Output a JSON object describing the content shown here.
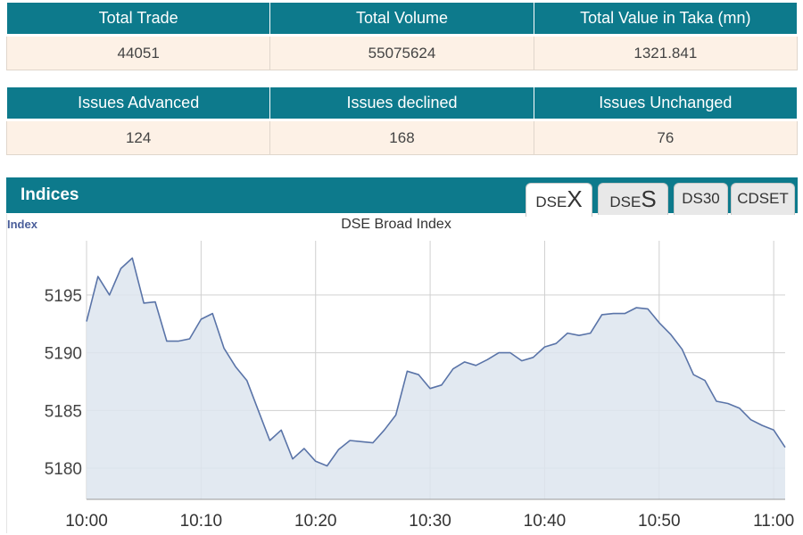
{
  "market_summary": {
    "headers": [
      "Total Trade",
      "Total Volume",
      "Total Value in Taka (mn)"
    ],
    "values": [
      "44051",
      "55075624",
      "1321.841"
    ]
  },
  "issues_summary": {
    "headers": [
      "Issues Advanced",
      "Issues declined",
      "Issues Unchanged"
    ],
    "values": [
      "124",
      "168",
      "76"
    ]
  },
  "indices": {
    "title": "Indices",
    "tabs": [
      {
        "prefix": "DSE",
        "suffix": "X",
        "active": true
      },
      {
        "prefix": "DSE",
        "suffix": "S",
        "active": false
      },
      {
        "label": "DS30",
        "active": false
      },
      {
        "label": "CDSET",
        "active": false
      }
    ]
  },
  "chart_data": {
    "type": "area",
    "title": "DSE Broad Index",
    "ylabel": "Index",
    "xlabel": "",
    "x_ticks": [
      "10:00",
      "10:10",
      "10:20",
      "10:30",
      "10:40",
      "10:50",
      "11:00"
    ],
    "y_ticks": [
      5180,
      5185,
      5190,
      5195
    ],
    "xlim": [
      0,
      61
    ],
    "ylim": [
      5177.3,
      5199.7
    ],
    "grid": true,
    "colors": {
      "line": "#5a74a8",
      "fill": "#dde5ef",
      "grid": "#d0d0d0"
    },
    "series": [
      {
        "x": [
          0,
          1,
          2,
          3,
          4,
          5,
          6,
          7,
          8,
          9,
          10,
          11,
          12,
          13,
          14,
          15,
          16,
          17,
          18,
          19,
          20,
          21,
          22,
          23,
          24,
          25,
          26,
          27,
          28,
          29,
          30,
          31,
          32,
          33,
          34,
          35,
          36,
          37,
          38,
          39,
          40,
          41,
          42,
          43,
          44,
          45,
          46,
          47,
          48,
          49,
          50,
          51,
          52,
          53,
          54,
          55,
          56,
          57,
          58,
          59,
          60,
          61
        ],
        "values": [
          5192.7,
          5196.6,
          5195.0,
          5197.3,
          5198.2,
          5194.3,
          5194.4,
          5191.0,
          5191.0,
          5191.2,
          5192.9,
          5193.4,
          5190.4,
          5188.8,
          5187.6,
          5185.0,
          5182.4,
          5183.3,
          5180.8,
          5181.7,
          5180.6,
          5180.2,
          5181.6,
          5182.4,
          5182.3,
          5182.2,
          5183.3,
          5184.6,
          5188.4,
          5188.1,
          5186.9,
          5187.2,
          5188.6,
          5189.2,
          5188.9,
          5189.4,
          5190.0,
          5190.0,
          5189.3,
          5189.6,
          5190.5,
          5190.8,
          5191.7,
          5191.5,
          5191.7,
          5193.3,
          5193.4,
          5193.4,
          5193.9,
          5193.8,
          5192.6,
          5191.6,
          5190.3,
          5188.1,
          5187.6,
          5185.8,
          5185.6,
          5185.2,
          5184.2,
          5183.7,
          5183.3,
          5181.8
        ]
      }
    ]
  }
}
